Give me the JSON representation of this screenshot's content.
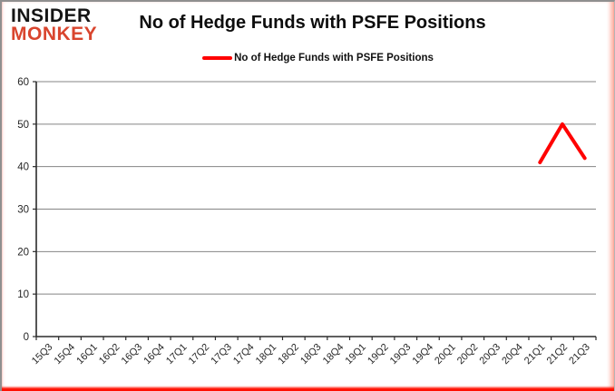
{
  "logo": {
    "line1": "INSIDER",
    "line2": "MONKEY",
    "color1": "#151515",
    "color2": "#d9452e"
  },
  "header": {
    "title": "No of Hedge Funds with PSFE Positions"
  },
  "legend": {
    "label": "No of Hedge Funds with PSFE Positions",
    "marker_color": "#ff0000"
  },
  "chart_data": {
    "type": "line",
    "title": "No of Hedge Funds with PSFE Positions",
    "categories": [
      "15Q3",
      "15Q4",
      "16Q1",
      "16Q2",
      "16Q3",
      "16Q4",
      "17Q1",
      "17Q2",
      "17Q3",
      "17Q4",
      "18Q1",
      "18Q2",
      "18Q3",
      "18Q4",
      "19Q1",
      "19Q2",
      "19Q3",
      "19Q4",
      "20Q1",
      "20Q2",
      "20Q3",
      "20Q4",
      "21Q1",
      "21Q2",
      "21Q3"
    ],
    "series": [
      {
        "name": "No of Hedge Funds with PSFE Positions",
        "color": "#ff0000",
        "values": [
          null,
          null,
          null,
          null,
          null,
          null,
          null,
          null,
          null,
          null,
          null,
          null,
          null,
          null,
          null,
          null,
          null,
          null,
          null,
          null,
          null,
          null,
          41,
          50,
          42
        ]
      }
    ],
    "xlabel": "",
    "ylabel": "",
    "ylim": [
      0,
      60
    ],
    "yticks": [
      0,
      10,
      20,
      30,
      40,
      50,
      60
    ],
    "grid": true,
    "legend_position": "top-center",
    "gridline_color": "#858585",
    "axis_color": "#2b2b2b",
    "tick_label_color": "#262626"
  }
}
